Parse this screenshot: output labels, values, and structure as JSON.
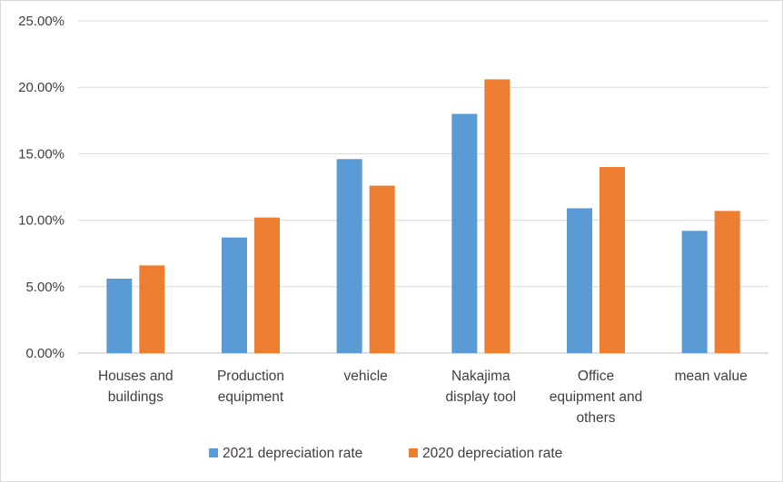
{
  "chart_data": {
    "type": "bar",
    "title": "",
    "xlabel": "",
    "ylabel": "",
    "ylim": [
      0,
      25
    ],
    "yticks": [
      "0.00%",
      "5.00%",
      "10.00%",
      "15.00%",
      "20.00%",
      "25.00%"
    ],
    "categories": [
      [
        "Houses and",
        "buildings"
      ],
      [
        "Production",
        "equipment"
      ],
      [
        "vehicle"
      ],
      [
        "Nakajima",
        "display tool"
      ],
      [
        "Office",
        "equipment and",
        "others"
      ],
      [
        "mean value"
      ]
    ],
    "series": [
      {
        "name": "2021 depreciation rate",
        "color": "#5b9bd5",
        "values": [
          5.6,
          8.7,
          14.6,
          18.0,
          10.9,
          9.2
        ]
      },
      {
        "name": "2020 depreciation rate",
        "color": "#ed7d31",
        "values": [
          6.6,
          10.2,
          12.6,
          20.6,
          14.0,
          10.7
        ]
      }
    ],
    "grid": true,
    "legend": "bottom"
  }
}
